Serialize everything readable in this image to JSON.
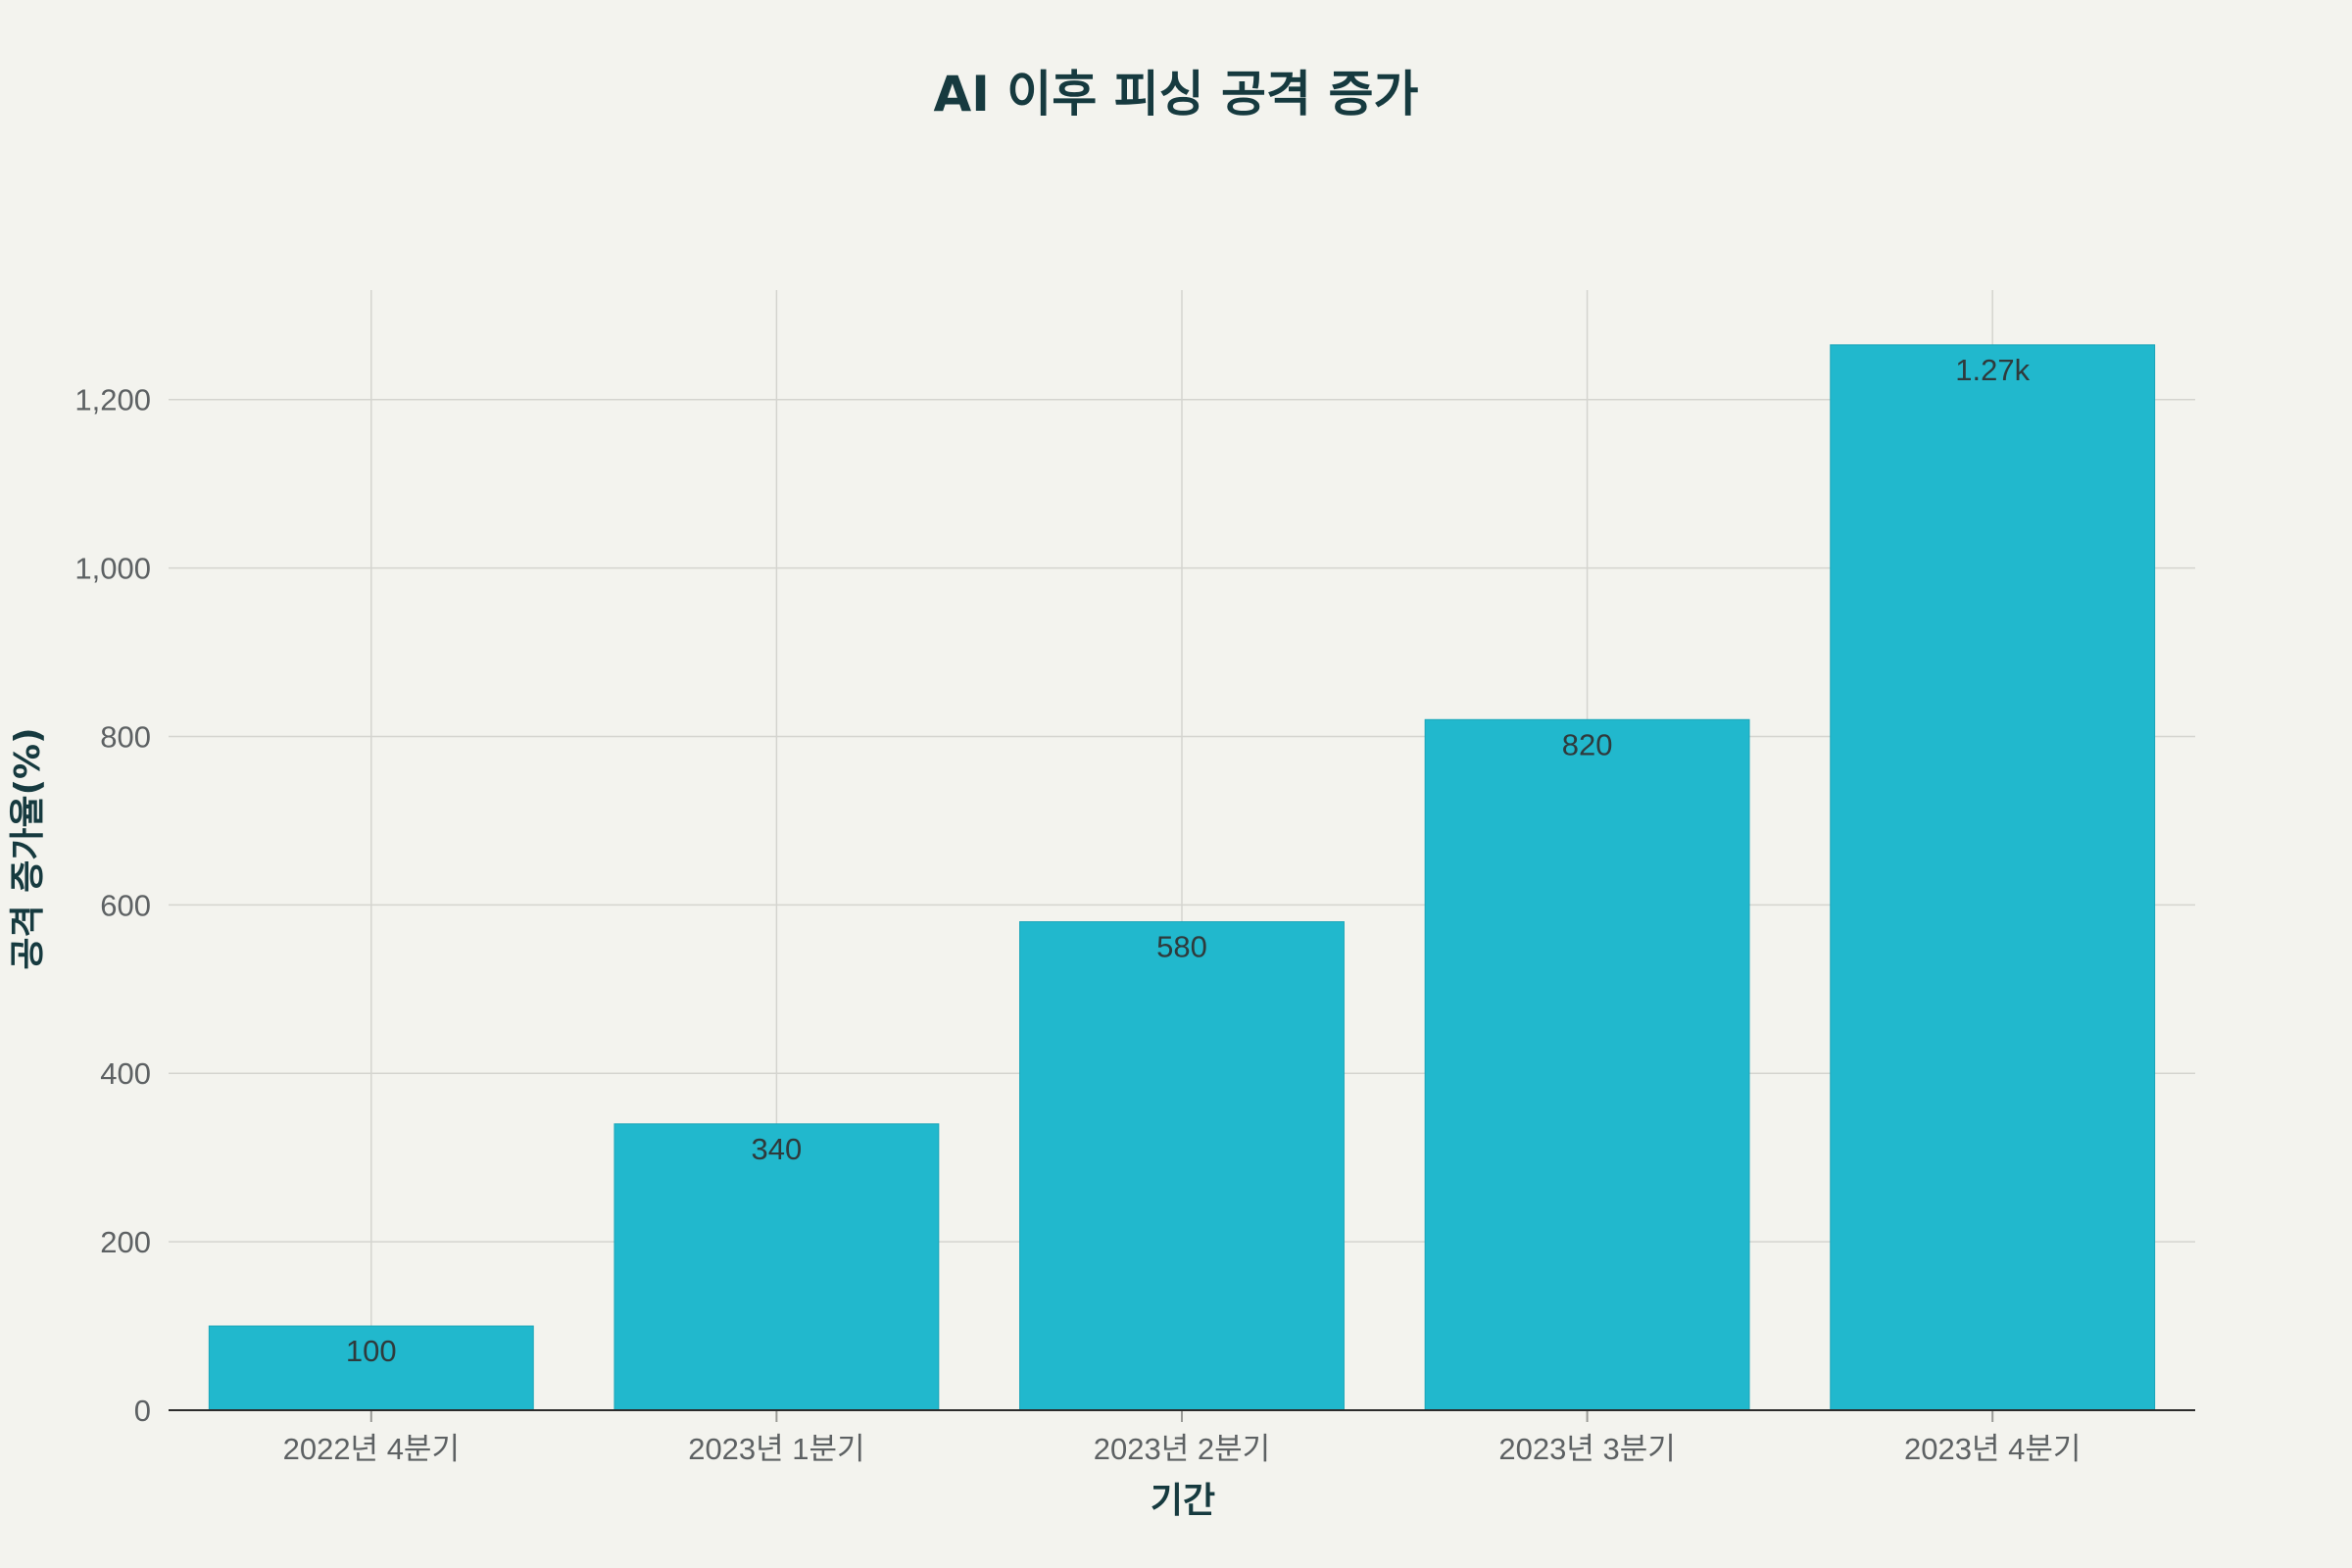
{
  "chart_data": {
    "type": "bar",
    "title": "AI 이후 피싱 공격 증가",
    "xlabel": "기간",
    "ylabel": "공격 증가율(%)",
    "categories": [
      "2022년 4분기",
      "2023년 1분기",
      "2023년 2분기",
      "2023년 3분기",
      "2023년 4분기"
    ],
    "values": [
      100,
      340,
      580,
      820,
      1265
    ],
    "value_labels": [
      "100",
      "340",
      "580",
      "820",
      "1.27k"
    ],
    "ylim": [
      0,
      1330
    ],
    "yticks": [
      0,
      200,
      400,
      600,
      800,
      1000,
      1200
    ],
    "ytick_labels": [
      "0",
      "200",
      "400",
      "600",
      "800",
      "1,000",
      "1,200"
    ],
    "grid": true,
    "legend": "none",
    "bar_color": "#21b8cd",
    "background_color": "#f3f3ee"
  }
}
